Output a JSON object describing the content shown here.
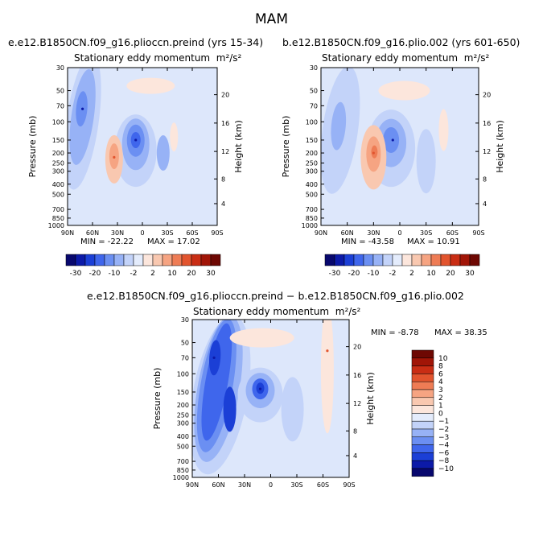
{
  "main_title": "MAM",
  "colors": {
    "scale": [
      "#08086e",
      "#0c1aa8",
      "#1b3fd6",
      "#3f66ec",
      "#6b8ff2",
      "#97b2f6",
      "#c3d3f9",
      "#e4ecfc",
      "#fce6dc",
      "#f9c8b0",
      "#f6a482",
      "#ee7c55",
      "#e2542e",
      "#c92d14",
      "#a11507",
      "#6e0803"
    ],
    "background_field": "#dde7fb"
  },
  "chart_data": [
    {
      "type": "heatmap",
      "name": "panel-preind",
      "title": "e.e12.B1850CN.f09_g16.plioccn.preind (yrs 15-34)",
      "subtitle": "Stationary eddy momentum",
      "units": "m²/s²",
      "xlabel": "",
      "ylabel": "Pressure (mb)",
      "ylabel_right": "Height (km)",
      "x_tick_labels": [
        "90N",
        "60N",
        "30N",
        "0",
        "30S",
        "60S",
        "90S"
      ],
      "x_tick_values": [
        90,
        60,
        30,
        0,
        -30,
        -60,
        -90
      ],
      "y_tick_labels": [
        "30",
        "50",
        "70",
        "100",
        "150",
        "200",
        "250",
        "300",
        "400",
        "500",
        "700",
        "850",
        "1000"
      ],
      "y_tick_values": [
        30,
        50,
        70,
        100,
        150,
        200,
        250,
        300,
        400,
        500,
        700,
        850,
        1000
      ],
      "ylim": [
        1000,
        30
      ],
      "height_tick_labels": [
        "20",
        "16",
        "12",
        "8",
        "4"
      ],
      "height_tick_values": [
        20,
        16,
        12,
        8,
        4
      ],
      "min_label": "MIN = -22.22",
      "max_label": "MAX = 17.02",
      "min": -22.22,
      "max": 17.02,
      "colorbar_levels": [
        -30,
        -20,
        -10,
        -2,
        2,
        10,
        20,
        30
      ],
      "colorbar_tick_labels": [
        "-30",
        "-20",
        "-10",
        "-2",
        "2",
        "10",
        "20",
        "30"
      ],
      "features": [
        {
          "lat": 72,
          "p": 75,
          "level": -20,
          "desc": "high-latitude upper minimum"
        },
        {
          "lat": 8,
          "p": 150,
          "level": -22.22,
          "desc": "tropical upper minimum"
        },
        {
          "lat": 34,
          "p": 220,
          "level": 10,
          "desc": "subtropical positive lobe"
        }
      ]
    },
    {
      "type": "heatmap",
      "name": "panel-plio",
      "title": "b.e12.B1850CN.f09_g16.plio.002 (yrs 601-650)",
      "subtitle": "Stationary eddy momentum",
      "units": "m²/s²",
      "xlabel": "",
      "ylabel": "Pressure (mb)",
      "ylabel_right": "Height (km)",
      "x_tick_labels": [
        "90N",
        "60N",
        "30N",
        "0",
        "30S",
        "60S",
        "90S"
      ],
      "x_tick_values": [
        90,
        60,
        30,
        0,
        -30,
        -60,
        -90
      ],
      "y_tick_labels": [
        "30",
        "50",
        "70",
        "100",
        "150",
        "200",
        "250",
        "300",
        "400",
        "500",
        "700",
        "850",
        "1000"
      ],
      "y_tick_values": [
        30,
        50,
        70,
        100,
        150,
        200,
        250,
        300,
        400,
        500,
        700,
        850,
        1000
      ],
      "ylim": [
        1000,
        30
      ],
      "height_tick_labels": [
        "20",
        "16",
        "12",
        "8",
        "4"
      ],
      "height_tick_values": [
        20,
        16,
        12,
        8,
        4
      ],
      "min_label": "MIN = -43.58",
      "max_label": "MAX = 10.91",
      "min": -43.58,
      "max": 10.91,
      "colorbar_levels": [
        -30,
        -20,
        -10,
        -2,
        2,
        10,
        20,
        30
      ],
      "colorbar_tick_labels": [
        "-30",
        "-20",
        "-10",
        "-2",
        "2",
        "10",
        "20",
        "30"
      ],
      "features": [
        {
          "lat": 8,
          "p": 150,
          "level": -20,
          "desc": "tropical upper minimum"
        },
        {
          "lat": 30,
          "p": 200,
          "level": 10,
          "desc": "subtropical positive lobe"
        }
      ]
    },
    {
      "type": "heatmap",
      "name": "panel-difference",
      "title": "e.e12.B1850CN.f09_g16.plioccn.preind − b.e12.B1850CN.f09_g16.plio.002",
      "subtitle": "Stationary eddy momentum",
      "units": "m²/s²",
      "xlabel": "",
      "ylabel": "Pressure (mb)",
      "ylabel_right": "Height (km)",
      "x_tick_labels": [
        "90N",
        "60N",
        "30N",
        "0",
        "30S",
        "60S",
        "90S"
      ],
      "x_tick_values": [
        90,
        60,
        30,
        0,
        -30,
        -60,
        -90
      ],
      "y_tick_labels": [
        "30",
        "50",
        "70",
        "100",
        "150",
        "200",
        "250",
        "300",
        "400",
        "500",
        "700",
        "850",
        "1000"
      ],
      "y_tick_values": [
        30,
        50,
        70,
        100,
        150,
        200,
        250,
        300,
        400,
        500,
        700,
        850,
        1000
      ],
      "ylim": [
        1000,
        30
      ],
      "height_tick_labels": [
        "20",
        "16",
        "12",
        "8",
        "4"
      ],
      "height_tick_values": [
        20,
        16,
        12,
        8,
        4
      ],
      "min_label": "MIN =   -8.78",
      "max_label": "MAX =  38.35",
      "min": -8.78,
      "max": 38.35,
      "colorbar_levels": [
        -10,
        -8,
        -6,
        -4,
        -3,
        -2,
        -1,
        0,
        1,
        2,
        3,
        4,
        6,
        8,
        10
      ],
      "colorbar_tick_labels": [
        "10",
        "8",
        "6",
        "4",
        "3",
        "2",
        "1",
        "0",
        "−1",
        "−2",
        "−3",
        "−4",
        "−6",
        "−8",
        "−10"
      ],
      "features": [
        {
          "lat": 65,
          "p": 70,
          "level": -8,
          "desc": "high-latitude deep negative"
        },
        {
          "lat": 12,
          "p": 140,
          "level": -6,
          "desc": "tropical negative"
        },
        {
          "lat": -65,
          "p": 60,
          "level": 1,
          "desc": "southern positive band"
        }
      ]
    }
  ]
}
